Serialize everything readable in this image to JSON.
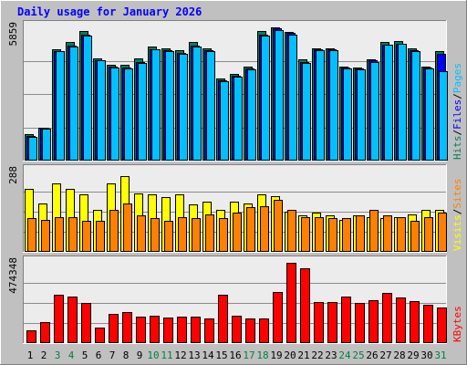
{
  "chart_data": {
    "title": "Daily usage for January 2026",
    "type": "bar",
    "categories": [
      "1",
      "2",
      "3",
      "4",
      "5",
      "6",
      "7",
      "8",
      "9",
      "10",
      "11",
      "12",
      "13",
      "14",
      "15",
      "16",
      "17",
      "18",
      "19",
      "20",
      "21",
      "22",
      "23",
      "24",
      "25",
      "26",
      "27",
      "28",
      "29",
      "30",
      "31"
    ],
    "weekend_days": [
      "3",
      "4",
      "10",
      "11",
      "17",
      "18",
      "24",
      "25",
      "31"
    ],
    "colors": {
      "background": "#c0c0c0",
      "plot": "#ececec",
      "title": "#0000ff",
      "hits": "#00805c",
      "files": "#0000ff",
      "pages": "#00c0ff",
      "visits": "#ffff00",
      "sites": "#ff8000",
      "kbytes": "#ff0000",
      "weekend": "#008040",
      "weekday": "#000000"
    },
    "panels": [
      {
        "id": "traffic",
        "ymax_label": "5859",
        "ymax": 5859,
        "ylim": [
          0,
          5859
        ],
        "legend": [
          {
            "text": "Hits",
            "color": "#00805c"
          },
          {
            "text": "/",
            "color": "#000000"
          },
          {
            "text": "Files",
            "color": "#0000ff"
          },
          {
            "text": "/",
            "color": "#000000"
          },
          {
            "text": "Pages",
            "color": "#00c0ff"
          }
        ],
        "series": [
          {
            "name": "Hits",
            "color": "#00805c",
            "values": [
              1150,
              1450,
              4900,
              5200,
              5700,
              4500,
              4200,
              4200,
              4500,
              5000,
              4950,
              4850,
              5200,
              4950,
              3600,
              3800,
              4150,
              5700,
              5850,
              5650,
              4450,
              4950,
              4950,
              4150,
              4100,
              4450,
              5200,
              5250,
              4950,
              4150,
              4800
            ]
          },
          {
            "name": "Files",
            "color": "#0000ff",
            "values": [
              1100,
              1450,
              4800,
              5050,
              5550,
              4400,
              4150,
              4100,
              4350,
              4900,
              4850,
              4750,
              5050,
              4850,
              3550,
              3750,
              4050,
              5550,
              5800,
              5600,
              4350,
              4900,
              4900,
              4100,
              4050,
              4400,
              5100,
              5150,
              4850,
              4100,
              4700
            ]
          },
          {
            "name": "Pages",
            "color": "#00c0ff",
            "values": [
              1050,
              1400,
              4800,
              5000,
              5500,
              4400,
              4100,
              4050,
              4300,
              4900,
              4800,
              4700,
              5000,
              4800,
              3500,
              3700,
              4000,
              5500,
              5750,
              5550,
              4300,
              4850,
              4850,
              4050,
              4000,
              4350,
              5100,
              5150,
              4800,
              4050,
              3950
            ]
          }
        ]
      },
      {
        "id": "sites-visits",
        "ymax_label": "288",
        "ymax": 288,
        "ylim": [
          0,
          288
        ],
        "legend": [
          {
            "text": "Visits",
            "color": "#ffff00"
          },
          {
            "text": "/",
            "color": "#000000"
          },
          {
            "text": "Sites",
            "color": "#ff8000"
          }
        ],
        "series": [
          {
            "name": "Visits",
            "color": "#ffff00",
            "values": [
              225,
              175,
              245,
              225,
              205,
              150,
              245,
              270,
              210,
              205,
              195,
              205,
              170,
              180,
              150,
              180,
              175,
              205,
              200,
              145,
              130,
              140,
              130,
              115,
              130,
              125,
              120,
              125,
              135,
              150,
              150
            ]
          },
          {
            "name": "Sites",
            "color": "#ff8000",
            "values": [
              120,
              115,
              125,
              125,
              110,
              110,
              150,
              175,
              130,
              120,
              110,
              125,
              120,
              135,
              120,
              140,
              160,
              165,
              185,
              150,
              125,
              125,
              120,
              120,
              130,
              150,
              130,
              125,
              110,
              125,
              140
            ]
          }
        ]
      },
      {
        "id": "kbytes",
        "ymax_label": "474348",
        "ymax": 474348,
        "ylim": [
          0,
          474348
        ],
        "legend": [
          {
            "text": "KBytes",
            "color": "#ff0000"
          }
        ],
        "series": [
          {
            "name": "KBytes",
            "color": "#ff0000",
            "values": [
              75000,
              125000,
              285000,
              275000,
              238000,
              90000,
              172000,
              185000,
              158000,
              160000,
              150000,
              155000,
              158000,
              148000,
              283000,
              160000,
              147000,
              148000,
              300000,
              474348,
              440000,
              240000,
              240000,
              275000,
              235000,
              255000,
              298000,
              270000,
              250000,
              228000,
              208000
            ]
          }
        ]
      }
    ]
  }
}
